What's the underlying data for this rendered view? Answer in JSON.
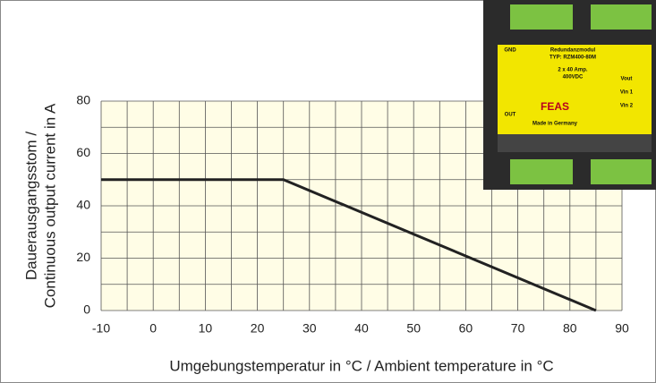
{
  "chart_data": {
    "type": "line",
    "xlabel": "Umgebungstemperatur in °C  /  Ambient temperature  in °C",
    "ylabel": [
      "Dauerausgangsstom /",
      "Continuous output current in A"
    ],
    "x": [
      -10,
      25,
      85
    ],
    "values": [
      50,
      50,
      0
    ],
    "color": "#222222",
    "xlim": [
      -10,
      90
    ],
    "ylim": [
      0,
      80
    ],
    "xticks": [
      -10,
      0,
      10,
      20,
      30,
      40,
      50,
      60,
      70,
      80,
      90
    ],
    "yticks": [
      0,
      20,
      40,
      60,
      80
    ],
    "xminorticks": [
      -5,
      5,
      15,
      25,
      35,
      45,
      55,
      65,
      75,
      85
    ],
    "yminorticks": [
      10,
      30,
      50,
      70
    ],
    "grid": true
  },
  "product_image": {
    "labels": [
      "GND",
      "Redundanzmodul",
      "TYP: RZM400-80M",
      "2 x 40 Amp.",
      "400VDC",
      "FEAS",
      "Made in Germany",
      "OUT",
      "Vout",
      "Vin 1",
      "Vin 2"
    ]
  }
}
